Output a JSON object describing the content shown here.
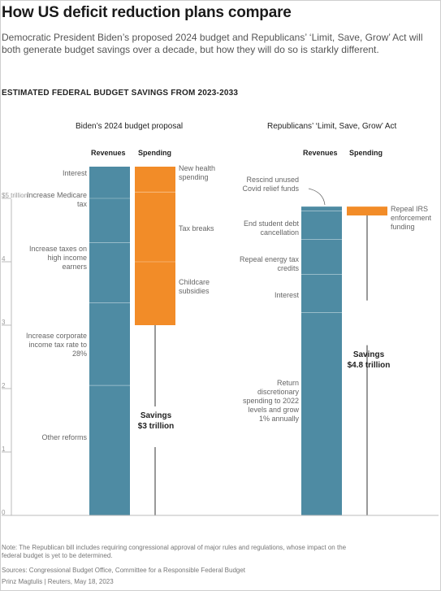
{
  "title": "How US deficit reduction plans compare",
  "subtitle": "Democratic President Biden’s proposed 2024 budget and Republicans’ ‘Limit, Save, Grow’ Act will both generate budget savings over a decade, but how they will do so is starkly different.",
  "section_title": "ESTIMATED FEDERAL BUDGET SAVINGS FROM 2023-2033",
  "note": "Note: The Republican bill includes requiring congressional approval of major rules and regulations, whose impact on the federal budget is yet to be determined.",
  "sources": "Sources: Congressional Budget Office, Committee for a Responsible Federal Budget",
  "credit": "Prinz Magtulis | Reuters, May 18, 2023",
  "colors": {
    "revenues": "#4e8ba3",
    "spending": "#f28c28",
    "axis": "#bbbbbb"
  },
  "chart_data": {
    "type": "bar",
    "subtype": "stacked-waterfall",
    "ylim": [
      0,
      5.5
    ],
    "yticks": [
      {
        "value": 5,
        "label": "$5 trillion"
      },
      {
        "value": 4,
        "label": "4"
      },
      {
        "value": 3,
        "label": "3"
      },
      {
        "value": 2,
        "label": "2"
      },
      {
        "value": 1,
        "label": "1"
      },
      {
        "value": 0,
        "label": "0"
      }
    ],
    "panels": [
      {
        "name": "Biden’s 2024 budget proposal",
        "revenues_label": "Revenues",
        "spending_label": "Spending",
        "revenues": [
          {
            "label": "Other reforms",
            "value": 2.05
          },
          {
            "label": "Increase corporate income tax rate to 28%",
            "value": 1.3
          },
          {
            "label": "Increase taxes on high income earners",
            "value": 0.95
          },
          {
            "label": "Increase Medicare tax",
            "value": 0.7
          },
          {
            "label": "Interest",
            "value": 0.5
          }
        ],
        "spending": [
          {
            "label": "New health spending",
            "value": 0.4
          },
          {
            "label": "Tax breaks",
            "value": 1.1
          },
          {
            "label": "Childcare subsidies",
            "value": 1.0
          }
        ],
        "savings_title": "Savings",
        "savings_value": "$3 trillion",
        "savings": 3.0
      },
      {
        "name": "Republicans’ ‘Limit, Save, Grow’ Act",
        "revenues_label": "Revenues",
        "spending_label": "Spending",
        "revenues": [
          {
            "label": "Return discretionary spending to 2022 levels and grow 1% annually",
            "value": 3.2
          },
          {
            "label": "Interest",
            "value": 0.6
          },
          {
            "label": "Repeal energy tax credits",
            "value": 0.55
          },
          {
            "label": "End student debt cancellation",
            "value": 0.45
          },
          {
            "label": "Rescind unused Covid relief funds",
            "value": 0.07
          }
        ],
        "spending": [
          {
            "label": "Repeal IRS enforcement funding",
            "value": 0.14
          }
        ],
        "savings_title": "Savings",
        "savings_value": "$4.8 trillion",
        "savings": 4.8
      }
    ]
  }
}
